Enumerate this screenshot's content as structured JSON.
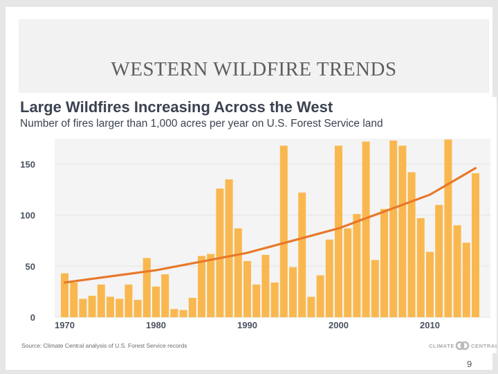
{
  "slide": {
    "title": "WESTERN WILDFIRE TRENDS",
    "page_number": "9"
  },
  "source_note": "Source: Climate Central analysis of U.S. Forest Service records",
  "logo_text": "CLIMATE CENTRAL",
  "colors": {
    "bar": "#f9b84f",
    "trend": "#e8782a",
    "title": "#3a4250",
    "tick": "#4a5160",
    "grid": "#e3e3e3",
    "plot_bg": "#f4f4f4"
  },
  "chart_data": {
    "type": "bar",
    "title": "Large Wildfires Increasing Across the West",
    "subtitle": "Number of fires larger than 1,000 acres per year on U.S. Forest Service land",
    "xlabel": "",
    "ylabel": "",
    "ylim": [
      0,
      175
    ],
    "yticks": [
      0,
      50,
      100,
      150
    ],
    "xticks": [
      1970,
      1980,
      1990,
      2000,
      2010
    ],
    "grid": true,
    "x": [
      1970,
      1971,
      1972,
      1973,
      1974,
      1975,
      1976,
      1977,
      1978,
      1979,
      1980,
      1981,
      1982,
      1983,
      1984,
      1985,
      1986,
      1987,
      1988,
      1989,
      1990,
      1991,
      1992,
      1993,
      1994,
      1995,
      1996,
      1997,
      1998,
      1999,
      2000,
      2001,
      2002,
      2003,
      2004,
      2005,
      2006,
      2007,
      2008,
      2009,
      2010,
      2011,
      2012,
      2013,
      2014,
      2015
    ],
    "values": [
      43,
      34,
      18,
      21,
      32,
      20,
      18,
      32,
      17,
      58,
      30,
      42,
      8,
      7,
      19,
      60,
      62,
      126,
      135,
      87,
      55,
      32,
      61,
      34,
      168,
      49,
      122,
      20,
      41,
      76,
      168,
      87,
      101,
      172,
      56,
      106,
      173,
      168,
      142,
      97,
      64,
      110,
      174,
      90,
      73,
      141
    ],
    "trend": {
      "type": "exponential",
      "x": [
        1970,
        1980,
        1990,
        2000,
        2010,
        2015
      ],
      "values": [
        34,
        46,
        63,
        87,
        120,
        146
      ]
    }
  }
}
